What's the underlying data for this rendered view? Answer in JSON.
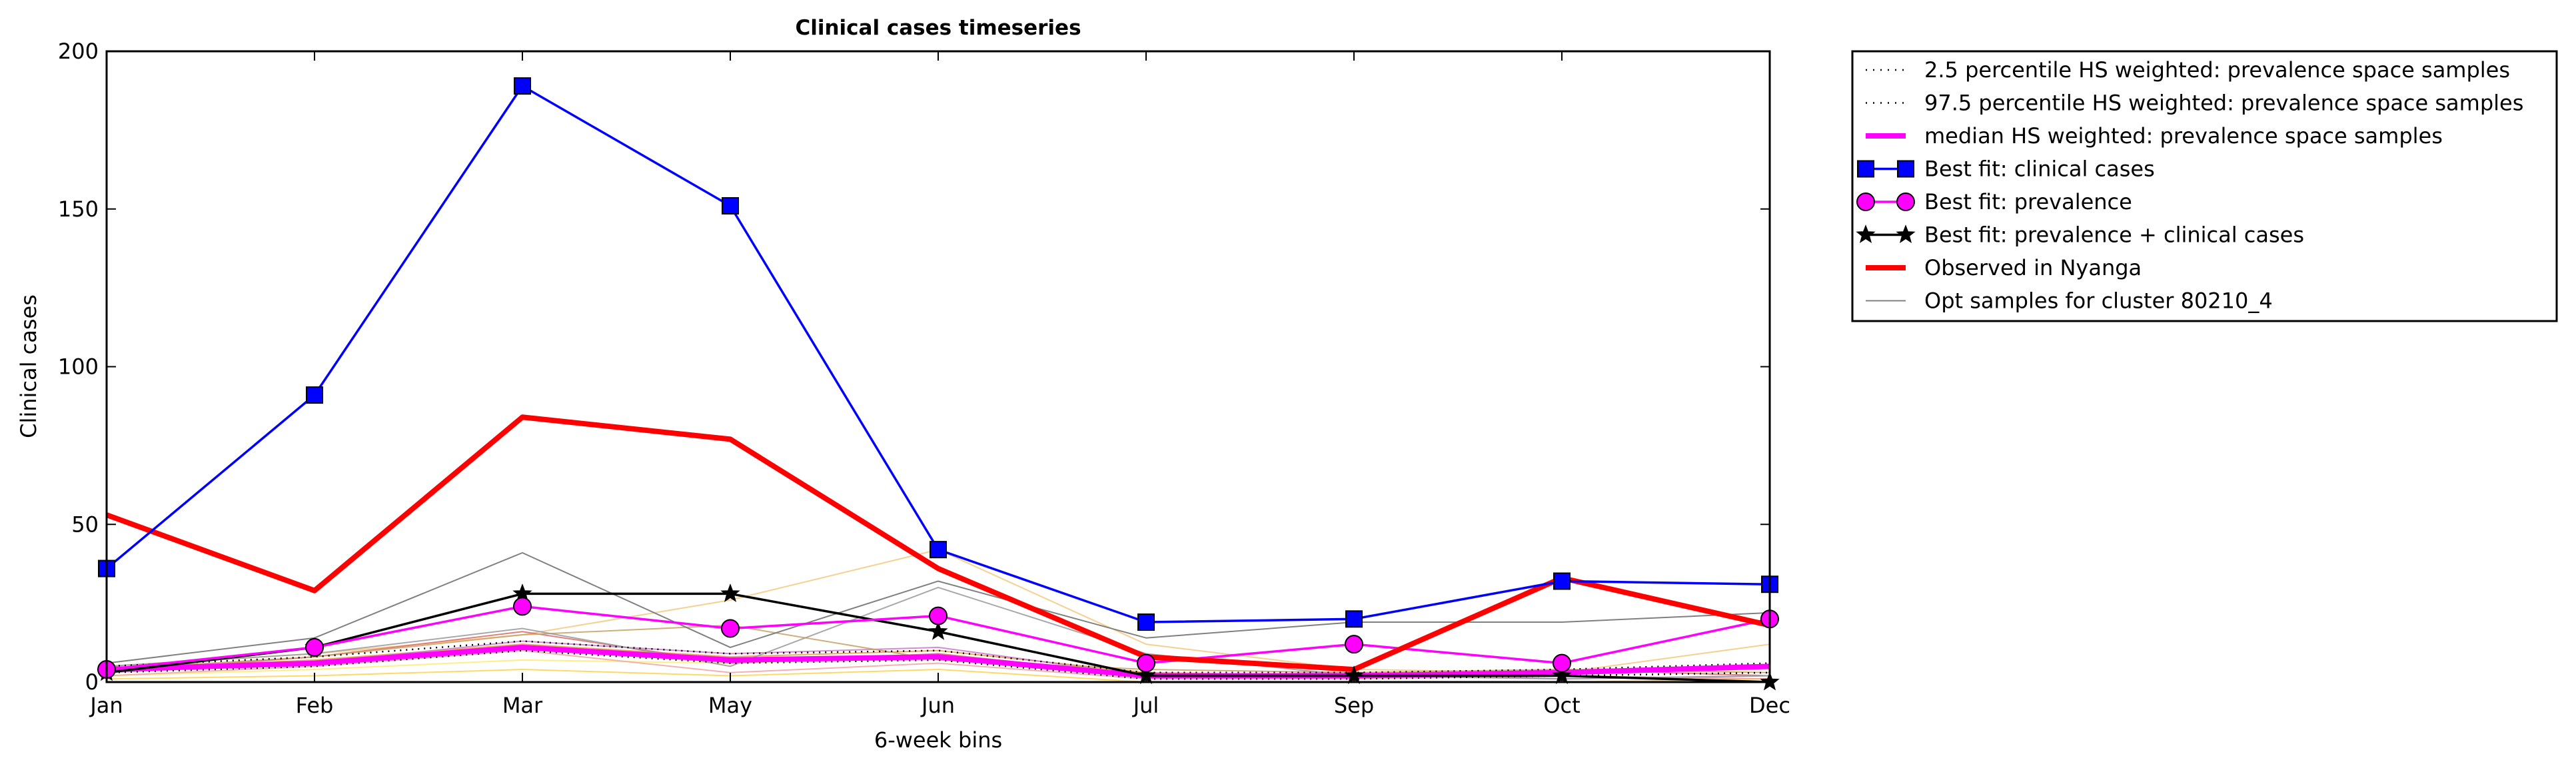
{
  "chart_data": {
    "type": "line",
    "title": "Clinical cases timeseries",
    "xlabel": "6-week bins",
    "ylabel": "Clinical cases",
    "categories": [
      "Jan",
      "Feb",
      "Mar",
      "May",
      "Jun",
      "Jul",
      "Sep",
      "Oct",
      "Dec"
    ],
    "ylim": [
      0,
      200
    ],
    "yticks": [
      0,
      50,
      100,
      150,
      200
    ],
    "grid": false,
    "legend_position": "outside-top-right",
    "series": [
      {
        "name": "2.5 percentile HS weighted: prevalence space samples",
        "style": "dotted",
        "color": "#000000",
        "values": [
          3,
          5,
          10,
          6,
          7,
          1,
          1,
          2,
          3
        ]
      },
      {
        "name": "97.5 percentile HS weighted: prevalence space samples",
        "style": "dotted",
        "color": "#000000",
        "values": [
          5,
          8,
          13,
          9,
          10,
          3,
          3,
          4,
          6
        ]
      },
      {
        "name": "median HS weighted: prevalence space samples",
        "style": "thick-solid",
        "color": "#ff00ff",
        "values": [
          4,
          6,
          11,
          7,
          8,
          2,
          2,
          3,
          5
        ]
      },
      {
        "name": "Best fit: clinical cases",
        "style": "line-square",
        "color": "#0000ff",
        "values": [
          36,
          91,
          189,
          151,
          42,
          19,
          20,
          32,
          31
        ]
      },
      {
        "name": "Best fit: prevalence",
        "style": "line-circle",
        "color": "#ff00ff",
        "values": [
          4,
          11,
          24,
          17,
          21,
          6,
          12,
          6,
          20
        ]
      },
      {
        "name": "Best fit: prevalence + clinical cases",
        "style": "line-star",
        "color": "#000000",
        "values": [
          3,
          11,
          28,
          28,
          16,
          2,
          2,
          2,
          0
        ]
      },
      {
        "name": "Observed in Nyanga",
        "style": "thick-solid",
        "color": "#ff0000",
        "values": [
          53,
          29,
          84,
          77,
          36,
          8,
          4,
          33,
          18
        ]
      },
      {
        "name": "Opt samples for cluster 80210_4",
        "style": "thin-solid",
        "color": "#808080",
        "values": [
          6,
          14,
          41,
          11,
          32,
          14,
          19,
          19,
          22
        ]
      }
    ],
    "background_samples": [
      {
        "color": "#f4c87a",
        "values": [
          5,
          9,
          15,
          26,
          42,
          12,
          4,
          3,
          12
        ]
      },
      {
        "color": "#ffeb70",
        "values": [
          2,
          4,
          7,
          6,
          8,
          3,
          2,
          3,
          4
        ]
      },
      {
        "color": "#e5a040",
        "values": [
          4,
          7,
          12,
          8,
          10,
          3,
          2,
          2,
          1
        ]
      },
      {
        "color": "#d96a6a",
        "values": [
          3,
          8,
          16,
          6,
          9,
          2,
          1,
          4,
          2
        ]
      },
      {
        "color": "#cc77cc",
        "values": [
          3,
          6,
          13,
          9,
          11,
          2,
          3,
          1,
          2
        ]
      },
      {
        "color": "#ffd24a",
        "values": [
          1,
          2,
          4,
          2,
          4,
          0,
          0,
          0,
          1
        ]
      },
      {
        "color": "#c8a060",
        "values": [
          4,
          8,
          15,
          18,
          7,
          4,
          3,
          4,
          3
        ]
      },
      {
        "color": "#f1a3a3",
        "values": [
          2,
          5,
          10,
          3,
          6,
          1,
          1,
          2,
          1
        ]
      },
      {
        "color": "#999999",
        "values": [
          5,
          9,
          17,
          5,
          30,
          9,
          2,
          1,
          2
        ]
      }
    ]
  }
}
